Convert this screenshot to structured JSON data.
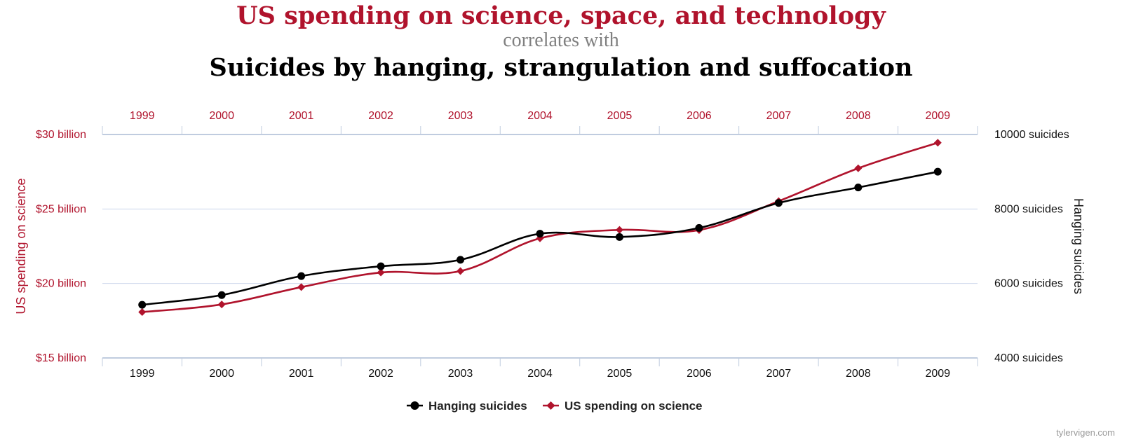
{
  "titles": {
    "main": "US spending on science, space, and technology",
    "connector": "correlates with",
    "secondary": "Suicides by hanging, strangulation and suffocation"
  },
  "colors": {
    "spending": "#b0132c",
    "suicides": "#000000",
    "grid": "#ccd6eb",
    "axis": "#c0ccdf"
  },
  "chart_data": {
    "type": "line",
    "categories": [
      "1999",
      "2000",
      "2001",
      "2002",
      "2003",
      "2004",
      "2005",
      "2006",
      "2007",
      "2008",
      "2009"
    ],
    "series": [
      {
        "name": "Hanging suicides",
        "axis": "right",
        "marker": "circle",
        "values": [
          5427,
          5688,
          6198,
          6462,
          6635,
          7336,
          7248,
          7491,
          8161,
          8578,
          9000
        ]
      },
      {
        "name": "US spending on science",
        "axis": "left",
        "marker": "diamond",
        "values": [
          18.079,
          18.594,
          19.753,
          20.734,
          20.831,
          23.029,
          23.597,
          23.584,
          25.525,
          27.731,
          29.449
        ]
      }
    ],
    "y_left": {
      "label": "US spending on science",
      "ticks": [
        "$15 billion",
        "$20 billion",
        "$25 billion",
        "$30 billion"
      ],
      "range": [
        15,
        30
      ]
    },
    "y_right": {
      "label": "Hanging suicides",
      "ticks": [
        "4000 suicides",
        "6000 suicides",
        "8000 suicides",
        "10000 suicides"
      ],
      "range": [
        4000,
        10000
      ]
    },
    "legend": [
      "Hanging suicides",
      "US spending on science"
    ],
    "legend_position": "bottom-center"
  },
  "watermark": "tylervigen.com"
}
